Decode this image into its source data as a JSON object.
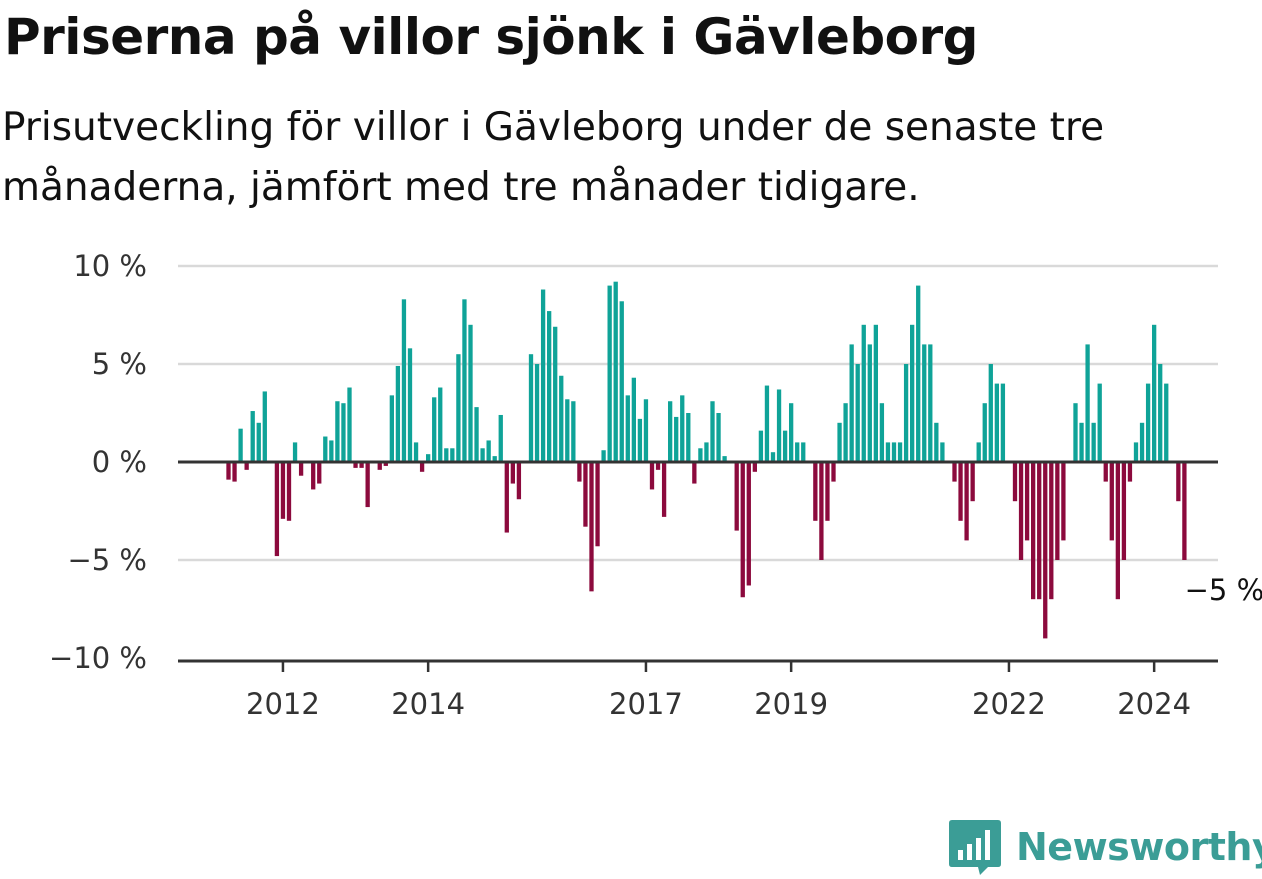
{
  "title": "Priserna på villor sjönk i Gävleborg",
  "subtitle": "Prisutveckling för villor i Gävleborg under de senaste tre månaderna, jämfört med tre månader tidigare.",
  "brand": {
    "name": "Newsworthy",
    "icon": "bar-chart-logo-icon",
    "color": "#3b9d96"
  },
  "colors": {
    "positive": "#0fa398",
    "negative": "#8c0a3d",
    "grid": "#d9d9d9",
    "axis": "#333333"
  },
  "chart_data": {
    "type": "bar",
    "xlabel": "",
    "ylabel": "",
    "ylim": [
      -10,
      10
    ],
    "yticks": [
      10,
      5,
      0,
      -5,
      -10
    ],
    "ytick_labels": [
      "10 %",
      "5 %",
      "0 %",
      "−5 %",
      "−10 %"
    ],
    "xticks": [
      2012,
      2014,
      2017,
      2019,
      2022,
      2024
    ],
    "x_start": "2011-04",
    "x_step": "month",
    "grid": true,
    "annotation": {
      "label": "−5 %",
      "value": -5
    },
    "values": [
      -0.9,
      -1.0,
      1.7,
      -0.4,
      2.6,
      2.0,
      3.6,
      0.0,
      -4.8,
      -2.9,
      -3.0,
      1.0,
      -0.7,
      0.0,
      -1.4,
      -1.1,
      1.3,
      1.1,
      3.1,
      3.0,
      3.8,
      -0.3,
      -0.3,
      -2.3,
      0.0,
      -0.4,
      -0.2,
      3.4,
      4.9,
      8.3,
      5.8,
      1.0,
      -0.5,
      0.4,
      3.3,
      3.8,
      0.7,
      0.7,
      5.5,
      8.3,
      7.0,
      2.8,
      0.7,
      1.1,
      0.3,
      2.4,
      -3.6,
      -1.1,
      -1.9,
      0.0,
      5.5,
      5.0,
      8.8,
      7.7,
      6.9,
      4.4,
      3.2,
      3.1,
      -1.0,
      -3.3,
      -6.6,
      -4.3,
      0.6,
      9.0,
      9.2,
      8.2,
      3.4,
      4.3,
      2.2,
      3.2,
      -1.4,
      -0.4,
      -2.8,
      3.1,
      2.3,
      3.4,
      2.5,
      -1.1,
      0.7,
      1.0,
      3.1,
      2.5,
      0.3,
      0.0,
      -3.5,
      -6.9,
      -6.3,
      -0.5,
      1.6,
      3.9,
      0.5,
      3.7,
      1.6,
      3.0,
      1.0,
      1.0,
      0.0,
      -3.0,
      -5.0,
      -3.0,
      -1.0,
      2.0,
      3.0,
      6.0,
      5.0,
      7.0,
      6.0,
      7.0,
      3.0,
      1.0,
      1.0,
      1.0,
      5.0,
      7.0,
      9.0,
      6.0,
      6.0,
      2.0,
      1.0,
      0.0,
      -1.0,
      -3.0,
      -4.0,
      -2.0,
      1.0,
      3.0,
      5.0,
      4.0,
      4.0,
      0.0,
      -2.0,
      -5.0,
      -4.0,
      -7.0,
      -7.0,
      -9.0,
      -7.0,
      -5.0,
      -4.0,
      0.0,
      3.0,
      2.0,
      6.0,
      2.0,
      4.0,
      -1.0,
      -4.0,
      -7.0,
      -5.0,
      -1.0,
      1.0,
      2.0,
      4.0,
      7.0,
      5.0,
      4.0,
      0.0,
      -2.0,
      -5.0
    ]
  }
}
